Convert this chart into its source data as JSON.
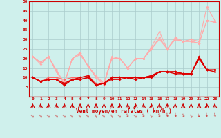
{
  "xlabel": "Vent moyen/en rafales ( km/h )",
  "background_color": "#cff0ec",
  "grid_color": "#aacccc",
  "xmin": 0,
  "xmax": 23,
  "ymin": 0,
  "ymax": 50,
  "yticks": [
    0,
    5,
    10,
    15,
    20,
    25,
    30,
    35,
    40,
    45,
    50
  ],
  "series": [
    {
      "color": "#ffaaaa",
      "lw": 0.8,
      "marker": "D",
      "markersize": 2.0,
      "y": [
        21,
        18,
        21,
        14,
        7,
        20,
        23,
        16,
        11,
        7,
        21,
        20,
        15,
        20,
        20,
        26,
        34,
        25,
        31,
        29,
        30,
        29,
        47,
        40
      ]
    },
    {
      "color": "#ffaaaa",
      "lw": 0.8,
      "marker": "D",
      "markersize": 2.0,
      "y": [
        21,
        18,
        21,
        13,
        7,
        20,
        23,
        16,
        10,
        7,
        20,
        20,
        15,
        20,
        20,
        25,
        31,
        25,
        30,
        29,
        29,
        28,
        40,
        39
      ]
    },
    {
      "color": "#ffaaaa",
      "lw": 0.8,
      "marker": "D",
      "markersize": 2.0,
      "y": [
        21,
        17,
        21,
        13,
        7,
        20,
        22,
        16,
        10,
        6,
        20,
        20,
        15,
        20,
        20,
        25,
        30,
        25,
        30,
        29,
        29,
        28,
        40,
        39
      ]
    },
    {
      "color": "#ff6666",
      "lw": 0.8,
      "marker": "D",
      "markersize": 2.0,
      "y": [
        10,
        8,
        10,
        10,
        9,
        10,
        10,
        11,
        7,
        7,
        10,
        10,
        10,
        10,
        10,
        11,
        13,
        13,
        13,
        12,
        12,
        21,
        14,
        14
      ]
    },
    {
      "color": "#dd0000",
      "lw": 1.0,
      "marker": "D",
      "markersize": 2.0,
      "y": [
        10,
        8,
        9,
        9,
        7,
        9,
        10,
        11,
        6,
        7,
        10,
        10,
        10,
        10,
        10,
        11,
        13,
        13,
        13,
        12,
        12,
        21,
        14,
        14
      ]
    },
    {
      "color": "#dd0000",
      "lw": 1.0,
      "marker": "D",
      "markersize": 2.0,
      "y": [
        10,
        8,
        9,
        9,
        6,
        9,
        9,
        10,
        6,
        7,
        10,
        10,
        10,
        9,
        10,
        11,
        13,
        13,
        13,
        12,
        12,
        20,
        14,
        14
      ]
    },
    {
      "color": "#dd0000",
      "lw": 1.0,
      "marker": "D",
      "markersize": 2.0,
      "y": [
        10,
        8,
        9,
        9,
        6,
        9,
        9,
        10,
        6,
        7,
        9,
        9,
        10,
        9,
        10,
        10,
        13,
        13,
        12,
        12,
        12,
        20,
        14,
        13
      ]
    }
  ],
  "arrow_angles": [
    45,
    45,
    45,
    45,
    45,
    45,
    45,
    45,
    30,
    45,
    30,
    45,
    20,
    45,
    20,
    30,
    20,
    10,
    10,
    20,
    30,
    20,
    10,
    10
  ]
}
